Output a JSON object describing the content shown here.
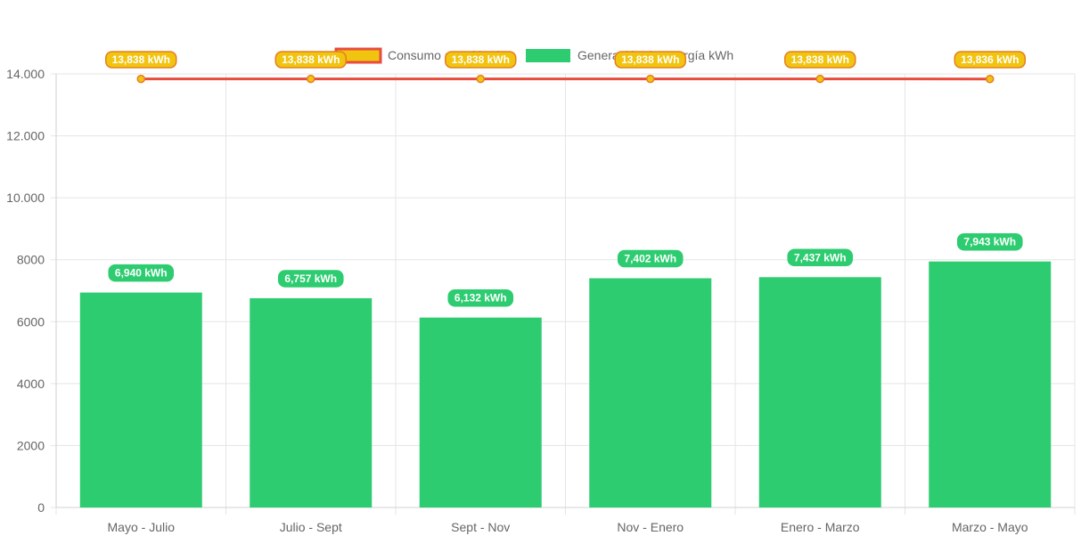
{
  "chart_data": {
    "type": "bar",
    "categories": [
      "Mayo - Julio",
      "Julio - Sept",
      "Sept - Nov",
      "Nov - Enero",
      "Enero - Marzo",
      "Marzo - Mayo"
    ],
    "series": [
      {
        "name": "Consumo anual kWh",
        "type": "line",
        "values": [
          13838,
          13838,
          13838,
          13838,
          13838,
          13836
        ],
        "data_labels": [
          "13,838 kWh",
          "13,838 kWh",
          "13,838 kWh",
          "13,838 kWh",
          "13,838 kWh",
          "13,836 kWh"
        ],
        "color": "#e74c3c",
        "label_bg": "#f1c40f",
        "label_border": "#e67e22"
      },
      {
        "name": "Generación de energía kWh",
        "type": "bar",
        "values": [
          6940,
          6757,
          6132,
          7402,
          7437,
          7943
        ],
        "data_labels": [
          "6,940 kWh",
          "6,757 kWh",
          "6,132 kWh",
          "7,402 kWh",
          "7,437 kWh",
          "7,943 kWh"
        ],
        "color": "#2ecc71"
      }
    ],
    "ylim": [
      0,
      14000
    ],
    "yticks": [
      0,
      2000,
      4000,
      6000,
      8000,
      10000,
      12000,
      14000
    ],
    "ytick_labels": [
      "0",
      "2000",
      "4000",
      "6000",
      "8000",
      "10.000",
      "12.000",
      "14.000"
    ],
    "grid": true,
    "legend_position": "top-center",
    "title": "",
    "xlabel": "",
    "ylabel": ""
  }
}
